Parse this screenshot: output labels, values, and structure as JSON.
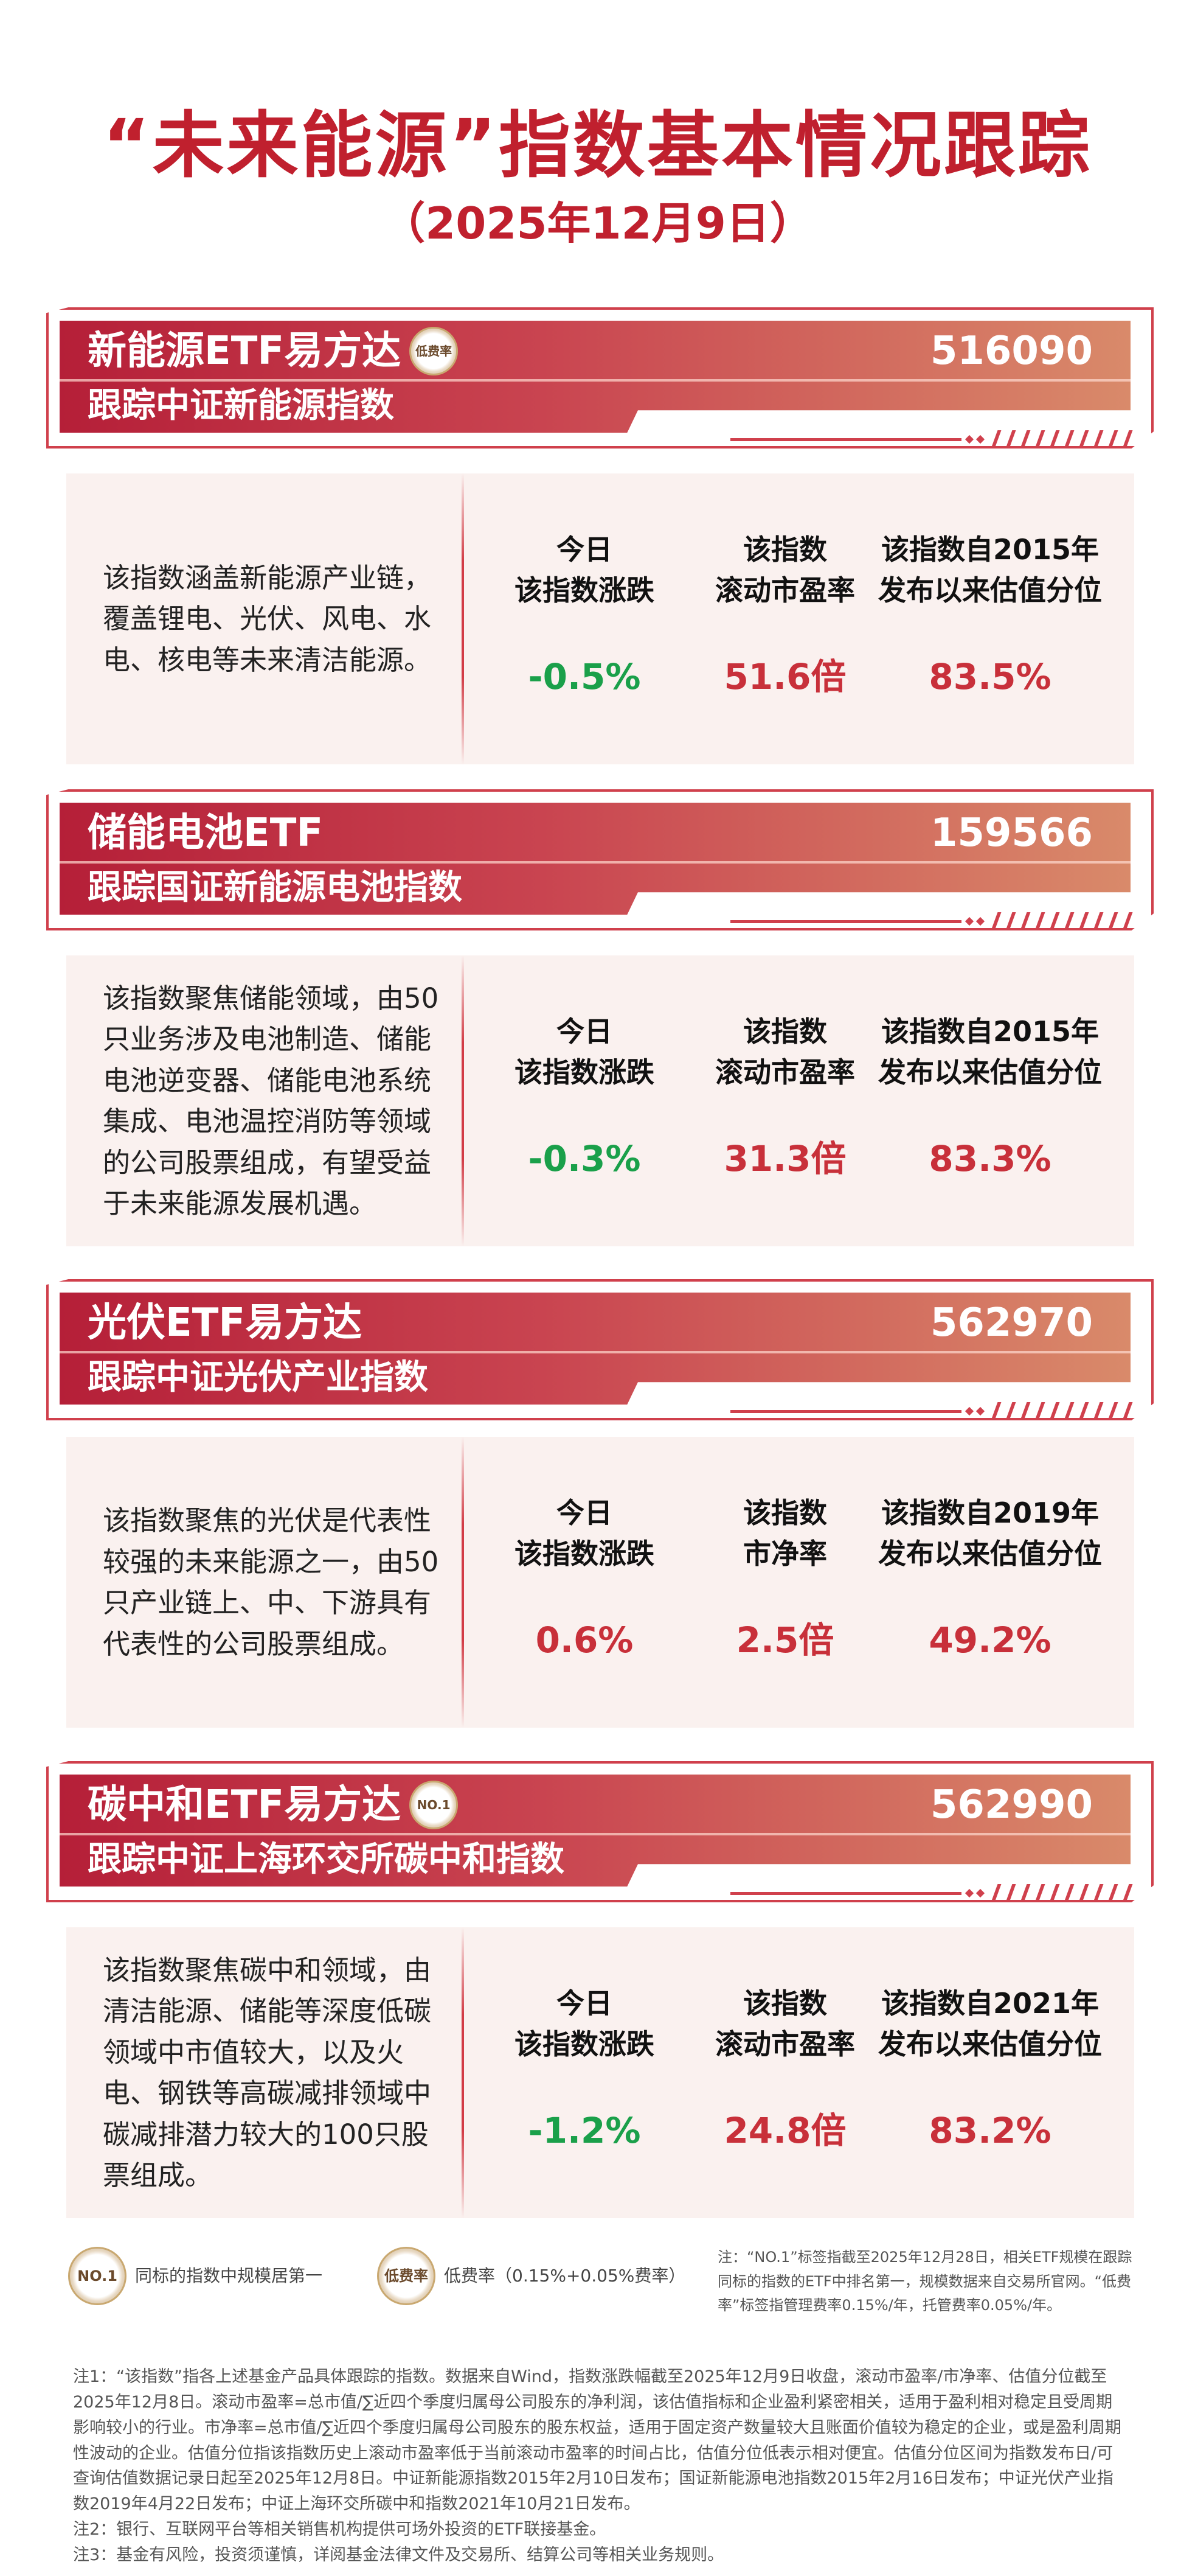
{
  "header": {
    "title": "“未来能源”指数基本情况跟踪",
    "date": "（2025年12月9日）"
  },
  "colors": {
    "up": "#c8303a",
    "down": "#1aa04a",
    "accent": "#c0202e"
  },
  "cards": [
    {
      "name": "新能源ETF易方达",
      "badge": "低费率",
      "code": "516090",
      "tracking": "跟踪中证新能源指数",
      "description": "该指数涵盖新能源产业链，覆盖锂电、光伏、风电、水电、核电等未来清洁能源。",
      "metrics": [
        {
          "label_1": "今日",
          "label_2": "该指数涨跌",
          "value": "-0.5%",
          "trend": "down"
        },
        {
          "label_1": "该指数",
          "label_2": "滚动市盈率",
          "value": "51.6倍",
          "trend": "up"
        },
        {
          "label_1": "该指数自2015年",
          "label_2": "发布以来估值分位",
          "value": "83.5%",
          "trend": "up"
        }
      ]
    },
    {
      "name": "储能电池ETF",
      "badge": "",
      "code": "159566",
      "tracking": "跟踪国证新能源电池指数",
      "description": "该指数聚焦储能领域，由50只业务涉及电池制造、储能电池逆变器、储能电池系统集成、电池温控消防等领域的公司股票组成，有望受益于未来能源发展机遇。",
      "metrics": [
        {
          "label_1": "今日",
          "label_2": "该指数涨跌",
          "value": "-0.3%",
          "trend": "down"
        },
        {
          "label_1": "该指数",
          "label_2": "滚动市盈率",
          "value": "31.3倍",
          "trend": "up"
        },
        {
          "label_1": "该指数自2015年",
          "label_2": "发布以来估值分位",
          "value": "83.3%",
          "trend": "up"
        }
      ]
    },
    {
      "name": "光伏ETF易方达",
      "badge": "",
      "code": "562970",
      "tracking": "跟踪中证光伏产业指数",
      "description": "该指数聚焦的光伏是代表性较强的未来能源之一，由50只产业链上、中、下游具有代表性的公司股票组成。",
      "metrics": [
        {
          "label_1": "今日",
          "label_2": "该指数涨跌",
          "value": "0.6%",
          "trend": "up"
        },
        {
          "label_1": "该指数",
          "label_2": "市净率",
          "value": "2.5倍",
          "trend": "up"
        },
        {
          "label_1": "该指数自2019年",
          "label_2": "发布以来估值分位",
          "value": "49.2%",
          "trend": "up"
        }
      ]
    },
    {
      "name": "碳中和ETF易方达",
      "badge": "NO.1",
      "code": "562990",
      "tracking": "跟踪中证上海环交所碳中和指数",
      "description": "该指数聚焦碳中和领域，由清洁能源、储能等深度低碳领域中市值较大，以及火电、钢铁等高碳减排领域中碳减排潜力较大的100只股票组成。",
      "metrics": [
        {
          "label_1": "今日",
          "label_2": "该指数涨跌",
          "value": "-1.2%",
          "trend": "down"
        },
        {
          "label_1": "该指数",
          "label_2": "滚动市盈率",
          "value": "24.8倍",
          "trend": "up"
        },
        {
          "label_1": "该指数自2021年",
          "label_2": "发布以来估值分位",
          "value": "83.2%",
          "trend": "up"
        }
      ]
    }
  ],
  "legend": {
    "no1_badge": "NO.1",
    "no1_text": "同标的指数中规模居第一",
    "fee_badge": "低费率",
    "fee_text": "低费率（0.15%+0.05%费率）",
    "note": "注：“NO.1”标签指截至2025年12月28日，相关ETF规模在跟踪同标的指数的ETF中排名第一，规模数据来自交易所官网。“低费率”标签指管理费率0.15%/年，托管费率0.05%/年。"
  },
  "footnotes": [
    "注1：“该指数”指各上述基金产品具体跟踪的指数。数据来自Wind，指数涨跌幅截至2025年12月9日收盘，滚动市盈率/市净率、估值分位截至2025年12月8日。滚动市盈率=总市值/∑近四个季度归属母公司股东的净利润，该估值指标和企业盈利紧密相关，适用于盈利相对稳定且受周期影响较小的行业。市净率=总市值/∑近四个季度归属母公司股东的股东权益，适用于固定资产数量较大且账面价值较为稳定的企业，或是盈利周期性波动的企业。估值分位指该指数历史上滚动市盈率低于当前滚动市盈率的时间占比，估值分位低表示相对便宜。估值分位区间为指数发布日/可查询估值数据记录日起至2025年12月8日。中证新能源指数2015年2月10日发布；国证新能源电池指数2015年2月16日发布；中证光伏产业指数2019年4月22日发布；中证上海环交所碳中和指数2021年10月21日发布。",
    "注2：银行、互联网平台等相关销售机构提供可场外投资的ETF联接基金。",
    "注3：基金有风险，投资须谨慎，详阅基金法律文件及交易所、结算公司等相关业务规则。"
  ]
}
